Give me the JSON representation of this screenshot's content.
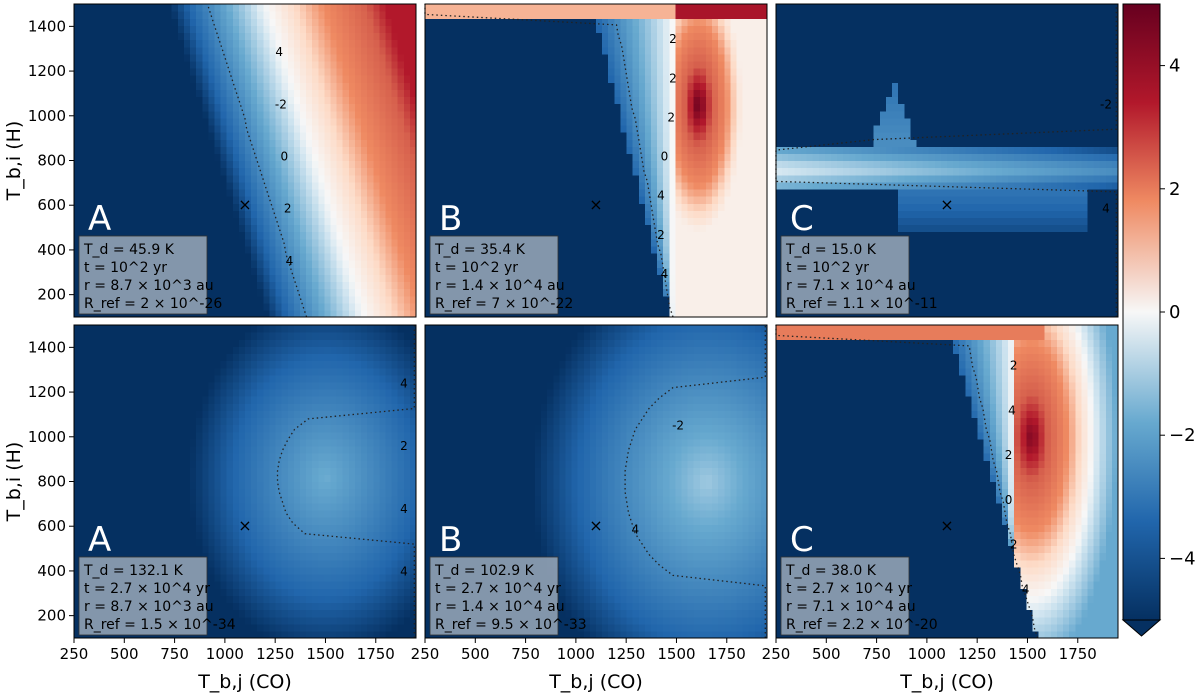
{
  "chart_data": [
    {
      "type": "heatmap",
      "row": 0,
      "col": 0,
      "letter": "A",
      "colors": [
        "#9c1127",
        "#c53e3d",
        "#f6a582",
        "#f7f7f7",
        "#97c6de",
        "#3a7cb8",
        "#083b6e"
      ],
      "info": [
        "T_d = 45.9 K",
        "t = 10^2 yr",
        "r = 8.7 × 10^3 au",
        "R_ref = 2 × 10^-26"
      ],
      "contour_labels": [
        "4",
        "2",
        "0",
        "-2",
        "4"
      ],
      "marker": {
        "x": 1100,
        "y": 600,
        "symbol": "×"
      }
    },
    {
      "type": "heatmap",
      "row": 0,
      "col": 1,
      "letter": "B",
      "info": [
        "T_d = 35.4 K",
        "t = 10^2 yr",
        "r = 1.4 × 10^4 au",
        "R_ref = 7 × 10^-22"
      ],
      "contour_labels": [
        "4",
        "2",
        "4",
        "0",
        "2",
        "2",
        "2"
      ],
      "marker": {
        "x": 1100,
        "y": 600,
        "symbol": "×"
      }
    },
    {
      "type": "heatmap",
      "row": 0,
      "col": 2,
      "letter": "C",
      "info": [
        "T_d = 15.0 K",
        "t = 10^2 yr",
        "r = 7.1 × 10^4 au",
        "R_ref = 1.1 × 10^-11"
      ],
      "contour_labels": [
        "4",
        "-2"
      ],
      "marker": {
        "x": 1100,
        "y": 600,
        "symbol": "×"
      }
    },
    {
      "type": "heatmap",
      "row": 1,
      "col": 0,
      "letter": "A",
      "info": [
        "T_d = 132.1 K",
        "t = 2.7 × 10^4 yr",
        "r = 8.7 × 10^3 au",
        "R_ref = 1.5 × 10^-34"
      ],
      "contour_labels": [
        "4",
        "4",
        "2",
        "4"
      ],
      "marker": {
        "x": 1100,
        "y": 600,
        "symbol": "×"
      }
    },
    {
      "type": "heatmap",
      "row": 1,
      "col": 1,
      "letter": "B",
      "info": [
        "T_d = 102.9 K",
        "t = 2.7 × 10^4 yr",
        "r = 1.4 × 10^4 au",
        "R_ref = 9.5 × 10^-33"
      ],
      "contour_labels": [
        "4",
        "-2"
      ],
      "marker": {
        "x": 1100,
        "y": 600,
        "symbol": "×"
      }
    },
    {
      "type": "heatmap",
      "row": 1,
      "col": 2,
      "letter": "C",
      "info": [
        "T_d = 38.0 K",
        "t = 2.7 × 10^4 yr",
        "r = 7.1 × 10^4 au",
        "R_ref = 2.2 × 10^-20"
      ],
      "contour_labels": [
        "4",
        "2",
        "0",
        "2",
        "4",
        "2"
      ],
      "marker": {
        "x": 1100,
        "y": 600,
        "symbol": "×"
      }
    }
  ],
  "axes": {
    "xlabel": "T_b,j (CO)",
    "ylabel": "T_b,i (H)",
    "xlim": [
      250,
      1950
    ],
    "ylim": [
      100,
      1500
    ],
    "xticks": [
      "250",
      "500",
      "750",
      "1000",
      "1250",
      "1500",
      "1750"
    ],
    "yticks": [
      "200",
      "400",
      "600",
      "800",
      "1000",
      "1200",
      "1400"
    ]
  },
  "colorbar": {
    "range": [
      -5,
      5
    ],
    "ticks": [
      "4",
      "2",
      "0",
      "−2",
      "−4"
    ],
    "extend": "min"
  }
}
